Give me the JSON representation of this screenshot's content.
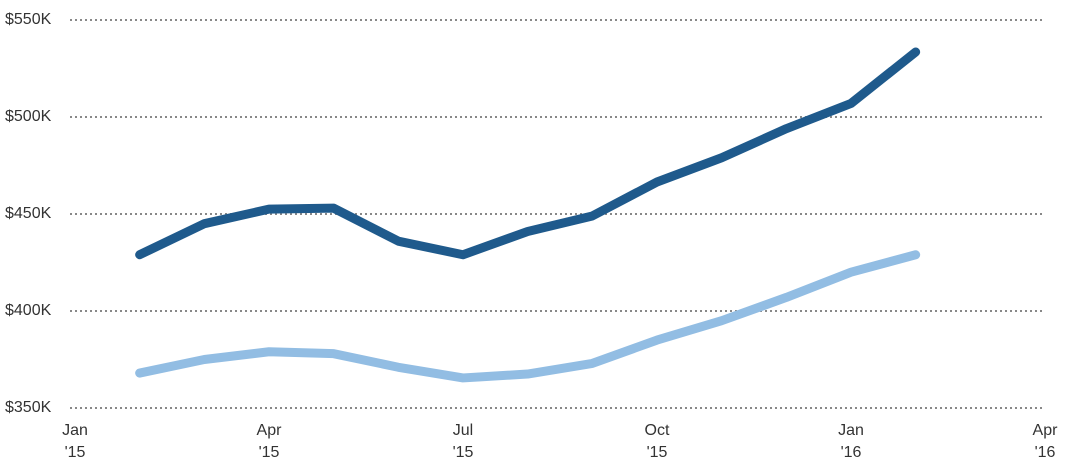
{
  "chart_data": {
    "type": "line",
    "x": [
      "2015-02",
      "2015-03",
      "2015-04",
      "2015-05",
      "2015-06",
      "2015-07",
      "2015-08",
      "2015-09",
      "2015-10",
      "2015-11",
      "2015-12",
      "2016-01",
      "2016-02"
    ],
    "series": [
      {
        "color": "#1f5a8c",
        "values": [
          429000,
          445000,
          452500,
          453000,
          436000,
          429000,
          441000,
          449000,
          466500,
          479000,
          494000,
          507000,
          533500
        ]
      },
      {
        "color": "#92bde3",
        "values": [
          368000,
          375000,
          379000,
          378000,
          371000,
          365500,
          367500,
          373000,
          385000,
          395000,
          407000,
          420000,
          429000
        ]
      }
    ],
    "xlim": [
      "2015-01",
      "2016-04"
    ],
    "xticks": [
      {
        "value": "2015-01",
        "label": "Jan '15"
      },
      {
        "value": "2015-04",
        "label": "Apr '15"
      },
      {
        "value": "2015-07",
        "label": "Jul '15"
      },
      {
        "value": "2015-10",
        "label": "Oct '15"
      },
      {
        "value": "2016-01",
        "label": "Jan '16"
      },
      {
        "value": "2016-04",
        "label": "Apr '16"
      }
    ],
    "ylim": [
      350000,
      550000
    ],
    "yticks": [
      {
        "value": 350000,
        "label": "$350K"
      },
      {
        "value": 400000,
        "label": "$400K"
      },
      {
        "value": 450000,
        "label": "$450K"
      },
      {
        "value": 500000,
        "label": "$500K"
      },
      {
        "value": 550000,
        "label": "$550K"
      }
    ],
    "grid": true
  }
}
